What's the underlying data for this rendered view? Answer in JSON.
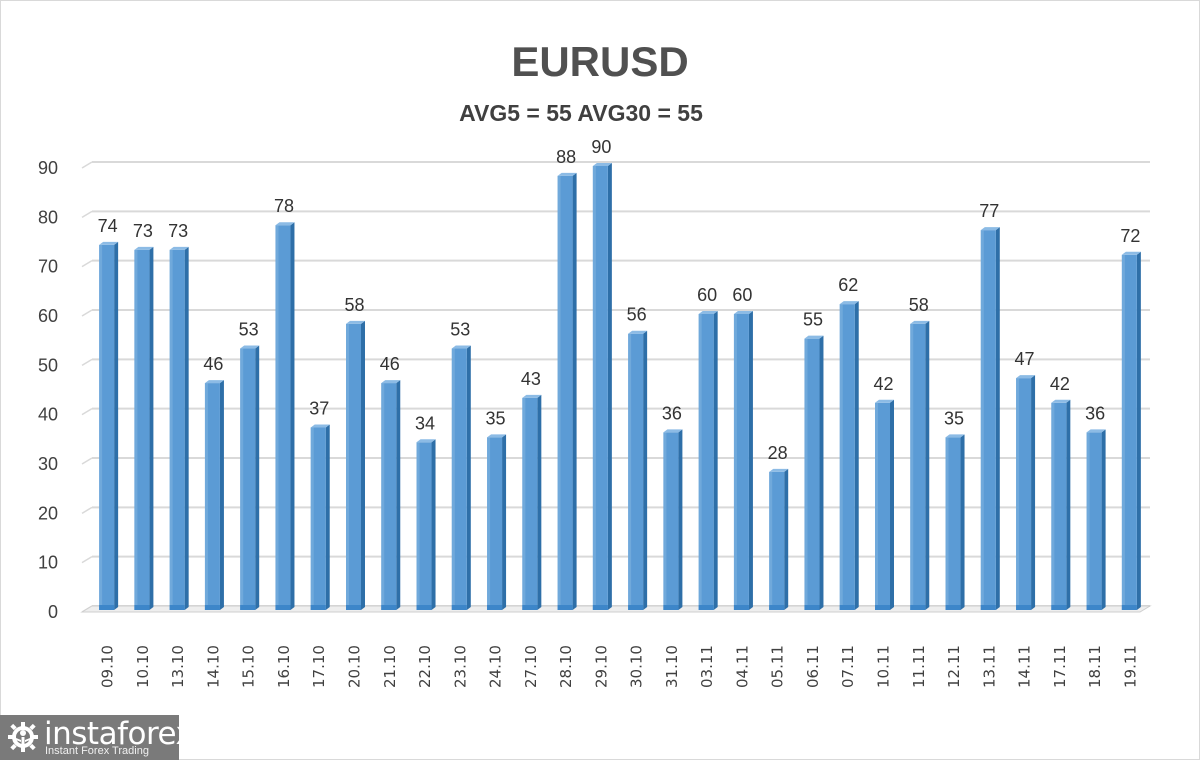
{
  "header": {
    "title": "EURUSD",
    "subtitle": "AVG5 = 55 AVG30 = 55"
  },
  "logo": {
    "name": "instaforex",
    "tagline": "Instant Forex Trading",
    "icon": "gear-person-icon"
  },
  "colors": {
    "bar": "#5b9bd5",
    "bar_dark": "#2e6fa8",
    "grid": "#d9d9d9",
    "text": "#404040"
  },
  "chart_data": {
    "type": "bar",
    "title": "EURUSD",
    "subtitle": "AVG5 = 55 AVG30 = 55",
    "xlabel": "",
    "ylabel": "",
    "ylim": [
      0,
      90
    ],
    "yticks": [
      0,
      10,
      20,
      30,
      40,
      50,
      60,
      70,
      80,
      90
    ],
    "grid": true,
    "legend": null,
    "categories": [
      "09.10",
      "10.10",
      "13.10",
      "14.10",
      "15.10",
      "16.10",
      "17.10",
      "20.10",
      "21.10",
      "22.10",
      "23.10",
      "24.10",
      "27.10",
      "28.10",
      "29.10",
      "30.10",
      "31.10",
      "03.11",
      "04.11",
      "05.11",
      "06.11",
      "07.11",
      "10.11",
      "11.11",
      "12.11",
      "13.11",
      "14.11",
      "17.11",
      "18.11",
      "19.11"
    ],
    "values": [
      74,
      73,
      73,
      46,
      53,
      78,
      37,
      58,
      46,
      34,
      53,
      35,
      43,
      88,
      90,
      56,
      36,
      60,
      60,
      28,
      55,
      62,
      42,
      58,
      35,
      77,
      47,
      42,
      36,
      72
    ],
    "data_labels": true
  }
}
